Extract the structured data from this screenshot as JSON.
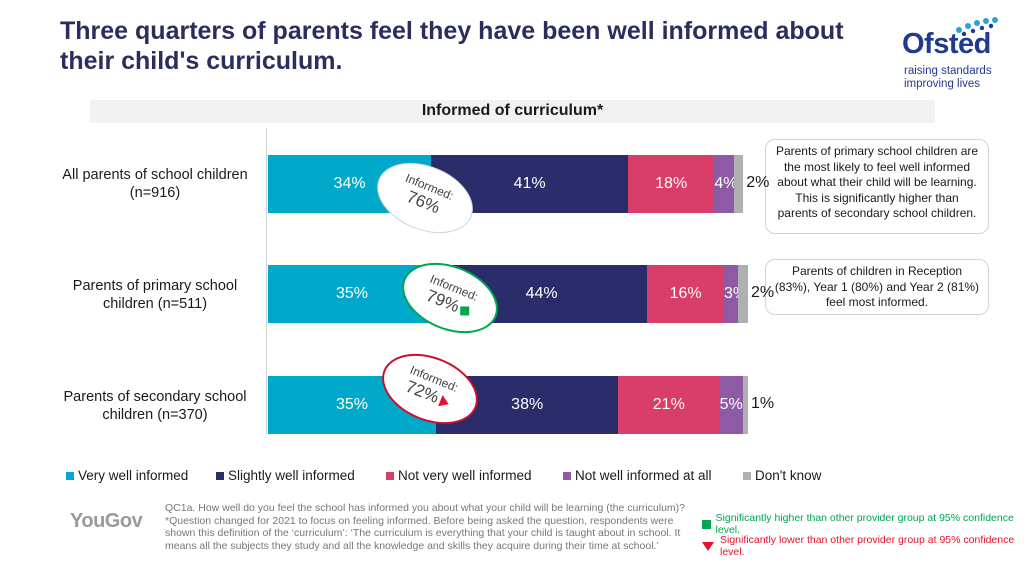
{
  "title": "Three quarters of parents feel they have been well informed about their child's curriculum.",
  "logo": {
    "name": "Ofsted",
    "tagline_1": "raising standards",
    "tagline_2": "improving lives"
  },
  "chart_data": {
    "type": "bar",
    "orientation": "horizontal",
    "stacked": true,
    "title": "Informed of curriculum*",
    "categories": [
      "All parents of school children (n=916)",
      "Parents of primary school children (n=511)",
      "Parents of secondary school children (n=370)"
    ],
    "series": [
      {
        "name": "Very well informed",
        "color": "#00a9c9",
        "values": [
          34,
          35,
          35
        ]
      },
      {
        "name": "Slightly well informed",
        "color": "#2b2d6b",
        "values": [
          41,
          44,
          38
        ]
      },
      {
        "name": "Not very well informed",
        "color": "#d93d69",
        "values": [
          18,
          16,
          21
        ]
      },
      {
        "name": "Not well informed at all",
        "color": "#8e5aa5",
        "values": [
          4,
          3,
          5
        ]
      },
      {
        "name": "Don't know",
        "color": "#b0b0b0",
        "values": [
          2,
          2,
          1
        ]
      }
    ],
    "xlim": [
      0,
      100
    ],
    "informed_totals": [
      {
        "line1": "Informed:",
        "line2": "76%",
        "significance": "none",
        "ring_color": "#cfd3de"
      },
      {
        "line1": "Informed:",
        "line2": "79%",
        "significance": "higher",
        "ring_color": "#00a650"
      },
      {
        "line1": "Informed:",
        "line2": "72%",
        "significance": "lower",
        "ring_color": "#c8102e"
      }
    ]
  },
  "callouts": [
    "Parents of primary school children are the most likely to feel well informed about what their child will be learning. This is significantly higher than parents of secondary school children.",
    "Parents of children in Reception (83%), Year 1 (80%) and Year 2 (81%) feel most informed."
  ],
  "branding": {
    "yougov": "YouGov"
  },
  "footnotes": [
    "QC1a. How well do you feel the school has informed you about what your child will be learning (the curriculum)?",
    "*Question changed for 2021 to focus on feeling informed. Before being asked the question, respondents were shown this definition of the ‘curriculum’: ‘The curriculum is everything that your child is taught about in school. It means all the subjects they study and all the knowledge and skills they acquire during their time at school.’"
  ],
  "significance_legend": {
    "higher": "Significantly higher than other provider group at 95% confidence level.",
    "lower": "Significantly lower than other provider group at 95% confidence level.",
    "higher_color": "#00a650",
    "lower_color": "#e8112d"
  }
}
